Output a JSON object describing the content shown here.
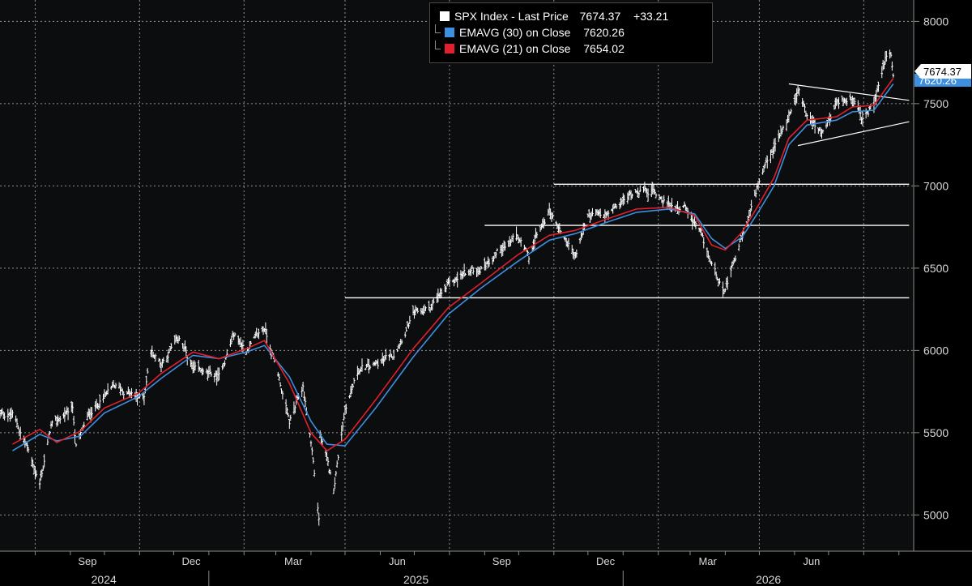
{
  "legend": {
    "price": {
      "label": "SPX Index  - Last Price",
      "value": "7674.37",
      "change": "+33.21",
      "color": "#ffffff"
    },
    "ema30": {
      "label": "EMAVG (30)  on Close",
      "value": "7620.26",
      "color": "#3d8fe0"
    },
    "ema21": {
      "label": "EMAVG (21)  on Close",
      "value": "7654.02",
      "color": "#e0202c"
    }
  },
  "last_price_tag": "7674.37",
  "ema30_tag": "7620.26",
  "chart_data": {
    "type": "line",
    "title": "SPX Index",
    "x_month_labels": [
      "Sep",
      "Dec",
      "Mar",
      "Jun",
      "Sep",
      "Dec",
      "Mar",
      "Jun"
    ],
    "x_year_labels": [
      "2024",
      "2025",
      "2026"
    ],
    "y_ticks": [
      5000,
      5500,
      6000,
      6500,
      7000,
      7500,
      8000
    ],
    "ylim": [
      4780,
      8130
    ],
    "grid": true,
    "legend_position": "top-center",
    "series": [
      {
        "name": "SPX Index - Last Price",
        "style": "bars",
        "color": "#ffffff",
        "x": [
          "2024-07-12",
          "2024-07-24",
          "2024-08-05",
          "2024-08-15",
          "2024-09-03",
          "2024-09-06",
          "2024-09-18",
          "2024-10-01",
          "2024-10-10",
          "2024-10-31",
          "2024-11-05",
          "2024-11-11",
          "2024-11-20",
          "2024-12-06",
          "2024-12-18",
          "2025-01-10",
          "2025-01-23",
          "2025-02-03",
          "2025-02-19",
          "2025-03-03",
          "2025-03-13",
          "2025-03-25",
          "2025-04-02",
          "2025-04-08",
          "2025-04-09",
          "2025-04-21",
          "2025-05-01",
          "2025-05-13",
          "2025-05-28",
          "2025-06-13",
          "2025-06-30",
          "2025-07-15",
          "2025-07-31",
          "2025-08-14",
          "2025-08-29",
          "2025-09-15",
          "2025-09-30",
          "2025-10-10",
          "2025-10-14",
          "2025-10-28",
          "2025-11-06",
          "2025-11-20",
          "2025-12-01",
          "2025-12-18",
          "2026-01-13",
          "2026-01-28",
          "2026-02-11",
          "2026-02-24",
          "2026-03-10",
          "2026-03-20",
          "2026-04-01",
          "2026-04-16",
          "2026-04-30",
          "2026-05-14",
          "2026-05-27",
          "2026-06-04",
          "2026-06-12",
          "2026-06-25",
          "2026-07-08",
          "2026-07-22",
          "2026-07-30",
          "2026-08-10",
          "2026-08-20",
          "2026-08-25",
          "2026-08-27"
        ],
        "y": [
          5610,
          5430,
          5190,
          5540,
          5650,
          5420,
          5620,
          5720,
          5780,
          5710,
          5730,
          6000,
          5920,
          6080,
          5880,
          5840,
          6100,
          6000,
          6140,
          5860,
          5560,
          5780,
          5390,
          4980,
          5490,
          5160,
          5650,
          5880,
          5910,
          5980,
          6210,
          6260,
          6390,
          6470,
          6500,
          6620,
          6690,
          6560,
          6650,
          6850,
          6740,
          6570,
          6820,
          6820,
          6980,
          6970,
          6880,
          6870,
          6700,
          6520,
          6360,
          6690,
          7000,
          7230,
          7420,
          7600,
          7430,
          7310,
          7490,
          7550,
          7400,
          7490,
          7780,
          7800,
          7674.37
        ]
      },
      {
        "name": "EMAVG (21) on Close",
        "color": "#e0202c",
        "x": [
          "2024-07-12",
          "2024-08-05",
          "2024-08-20",
          "2024-09-10",
          "2024-10-01",
          "2024-10-31",
          "2024-11-20",
          "2024-12-18",
          "2025-01-10",
          "2025-02-03",
          "2025-02-19",
          "2025-03-13",
          "2025-04-01",
          "2025-04-15",
          "2025-05-01",
          "2025-05-28",
          "2025-06-30",
          "2025-07-31",
          "2025-08-29",
          "2025-09-30",
          "2025-10-28",
          "2025-11-20",
          "2025-12-18",
          "2026-01-13",
          "2026-02-11",
          "2026-03-05",
          "2026-03-20",
          "2026-04-01",
          "2026-04-16",
          "2026-04-30",
          "2026-05-14",
          "2026-05-27",
          "2026-06-12",
          "2026-07-08",
          "2026-07-22",
          "2026-08-10",
          "2026-08-27"
        ],
        "y": [
          5430,
          5520,
          5440,
          5510,
          5650,
          5740,
          5860,
          5990,
          5950,
          6010,
          6060,
          5800,
          5500,
          5390,
          5460,
          5700,
          6010,
          6260,
          6410,
          6580,
          6700,
          6730,
          6800,
          6860,
          6870,
          6820,
          6640,
          6610,
          6720,
          6880,
          7050,
          7290,
          7400,
          7420,
          7480,
          7490,
          7654.02
        ]
      },
      {
        "name": "EMAVG (30) on Close",
        "color": "#3d8fe0",
        "x": [
          "2024-07-12",
          "2024-08-05",
          "2024-08-20",
          "2024-09-10",
          "2024-10-01",
          "2024-10-31",
          "2024-11-20",
          "2024-12-18",
          "2025-01-10",
          "2025-02-03",
          "2025-02-19",
          "2025-03-13",
          "2025-04-01",
          "2025-04-15",
          "2025-05-01",
          "2025-05-28",
          "2025-06-30",
          "2025-07-31",
          "2025-08-29",
          "2025-09-30",
          "2025-10-28",
          "2025-11-20",
          "2025-12-18",
          "2026-01-13",
          "2026-02-11",
          "2026-03-05",
          "2026-03-20",
          "2026-04-01",
          "2026-04-16",
          "2026-04-30",
          "2026-05-14",
          "2026-05-27",
          "2026-06-12",
          "2026-07-08",
          "2026-07-22",
          "2026-08-10",
          "2026-08-27"
        ],
        "y": [
          5390,
          5490,
          5450,
          5480,
          5620,
          5720,
          5830,
          5970,
          5950,
          5990,
          6030,
          5840,
          5570,
          5430,
          5420,
          5650,
          5960,
          6220,
          6380,
          6540,
          6670,
          6710,
          6780,
          6840,
          6860,
          6830,
          6680,
          6620,
          6690,
          6840,
          7000,
          7250,
          7370,
          7400,
          7450,
          7460,
          7620.26
        ]
      }
    ],
    "annotations": [
      {
        "type": "horizontal",
        "y": 6320,
        "x_start": "2025-05-01",
        "x_end": "2026-09-10"
      },
      {
        "type": "horizontal",
        "y": 6760,
        "x_start": "2025-09-01",
        "x_end": "2026-09-10"
      },
      {
        "type": "horizontal",
        "y": 7010,
        "x_start": "2025-11-01",
        "x_end": "2026-09-10"
      },
      {
        "type": "trendline",
        "x_start": "2026-05-27",
        "y_start": 7620,
        "x_end": "2026-09-10",
        "y_end": 7520
      },
      {
        "type": "trendline",
        "x_start": "2026-06-04",
        "y_start": 7245,
        "x_end": "2026-09-10",
        "y_end": 7390
      }
    ]
  }
}
